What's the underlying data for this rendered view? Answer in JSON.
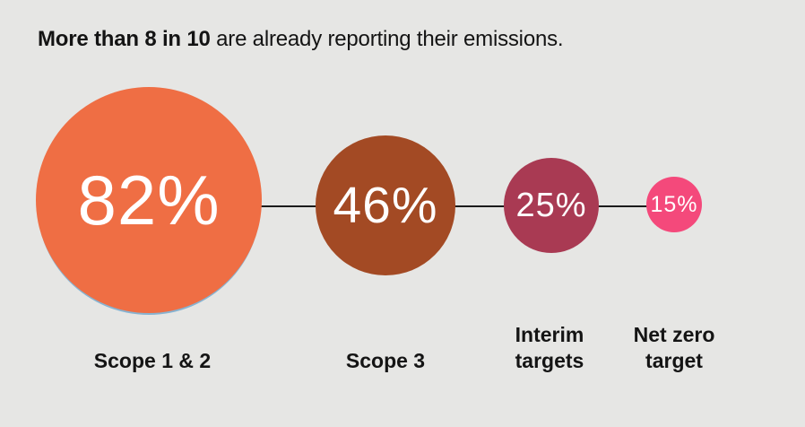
{
  "title": {
    "emphasis": "More than 8 in 10",
    "rest": " are already reporting their emissions."
  },
  "background_color": "#e6e6e4",
  "connector_color": "#1b1b1b",
  "text_color": "#141414",
  "value_text_color": "#ffffff",
  "bubble_shadow_color": "#87b3d1",
  "chart_data": {
    "type": "bubble",
    "title": "More than 8 in 10 are already reporting their emissions.",
    "categories": [
      "Scope 1 & 2",
      "Scope 3",
      "Interim targets",
      "Net zero target"
    ],
    "values": [
      82,
      46,
      25,
      15
    ],
    "unit": "%",
    "legend": "none",
    "layout_hint": "four circles sized proportionally to value, arranged left-to-right in descending order, connected by a thin horizontal black line, value printed inside each circle, category label below each circle"
  },
  "bubbles": [
    {
      "label": "Scope 1 & 2",
      "value": 82,
      "value_label": "82%",
      "color": "#ef6e44"
    },
    {
      "label": "Scope 3",
      "value": 46,
      "value_label": "46%",
      "color": "#a34a24"
    },
    {
      "label": "Interim targets",
      "value": 25,
      "value_label": "25%",
      "color": "#a93a53"
    },
    {
      "label": "Net zero target",
      "value": 15,
      "value_label": "15%",
      "color": "#f4497b"
    }
  ]
}
